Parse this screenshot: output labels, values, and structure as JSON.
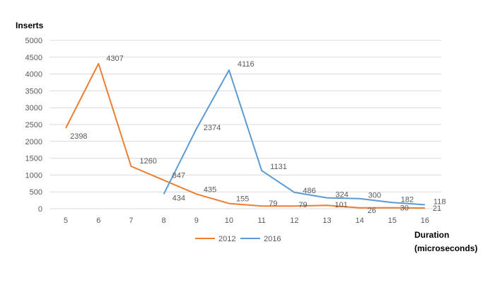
{
  "chart_data": {
    "type": "line",
    "title": "",
    "ylabel": "Inserts",
    "xlabel_lines": [
      "Duration",
      "(microseconds)"
    ],
    "x": [
      5,
      6,
      7,
      8,
      9,
      10,
      11,
      12,
      13,
      14,
      15,
      16
    ],
    "ylim": [
      0,
      5000
    ],
    "yticks": [
      0,
      500,
      1000,
      1500,
      2000,
      2500,
      3000,
      3500,
      4000,
      4500,
      5000
    ],
    "grid": true,
    "legend_position": "bottom",
    "series": [
      {
        "name": "2012",
        "color": "#ed7d31",
        "points": [
          [
            5,
            2398
          ],
          [
            6,
            4307
          ],
          [
            7,
            1260
          ],
          [
            8,
            847
          ],
          [
            9,
            435
          ],
          [
            10,
            155
          ],
          [
            11,
            79
          ],
          [
            12,
            79
          ],
          [
            13,
            101
          ],
          [
            14,
            26
          ],
          [
            15,
            30
          ],
          [
            16,
            21
          ]
        ]
      },
      {
        "name": "2016",
        "color": "#5b9bd5",
        "points": [
          [
            8,
            434
          ],
          [
            9,
            2374
          ],
          [
            10,
            4116
          ],
          [
            11,
            1131
          ],
          [
            12,
            486
          ],
          [
            13,
            324
          ],
          [
            14,
            300
          ],
          [
            15,
            182
          ],
          [
            16,
            118
          ]
        ]
      }
    ]
  }
}
